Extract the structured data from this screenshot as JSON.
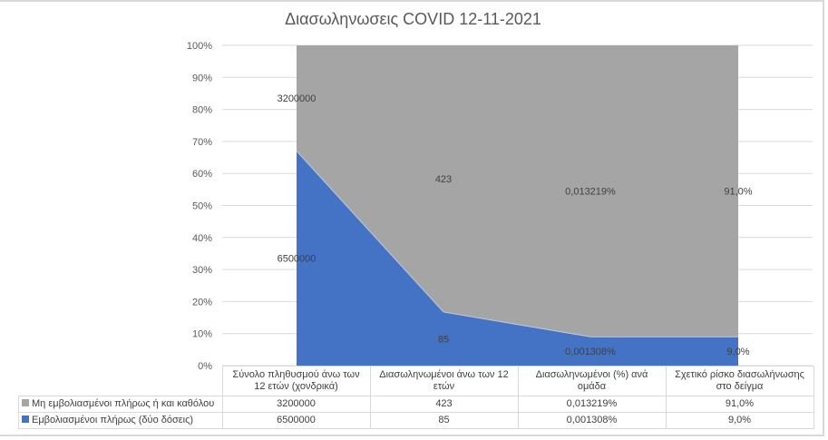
{
  "chart_data": {
    "type": "area",
    "stacked": "percent",
    "title": "Διασωληνωσεις COVID  12-11-2021",
    "xlabel": "",
    "ylabel": "",
    "ylim": [
      0,
      100
    ],
    "y_ticks": [
      "0%",
      "10%",
      "20%",
      "30%",
      "40%",
      "50%",
      "60%",
      "70%",
      "80%",
      "90%",
      "100%"
    ],
    "grid": true,
    "legend_position": "data-table",
    "categories": [
      "Σύνολο πληθυσμού άνω των 12 ετών (χονδρικά)",
      "Διασωληνωμένοι άνω των 12 ετών",
      "Διασωληνωμένοι (%) ανά ομάδα",
      "Σχετικό ρίσκο διασωλήνωσης στο δείγμα"
    ],
    "series": [
      {
        "name": "Μη εμβολιασμένοι πλήρως ή και καθόλου",
        "color": "#a5a5a5",
        "values": [
          3200000,
          423,
          0.013219,
          91.0
        ],
        "labels": [
          "3200000",
          "423",
          "0,013219%",
          "91,0%"
        ]
      },
      {
        "name": "Εμβολιασμένοι πλήρως (δύο δόσεις)",
        "color": "#4472c4",
        "values": [
          6500000,
          85,
          0.001308,
          9.0
        ],
        "labels": [
          "6500000",
          "85",
          "0,001308%",
          "9,0%"
        ]
      }
    ]
  },
  "table": {
    "headers": [
      [
        "Σύνολο πληθυσμού άνω των",
        "12 ετών (χονδρικά)"
      ],
      [
        "Διασωληνωμένοι άνω των 12",
        "ετών"
      ],
      [
        "Διασωληνωμένοι (%) ανά",
        "ομάδα"
      ],
      [
        "Σχετικό ρίσκο διασωλήνωσης",
        "στο δείγμα"
      ]
    ]
  }
}
